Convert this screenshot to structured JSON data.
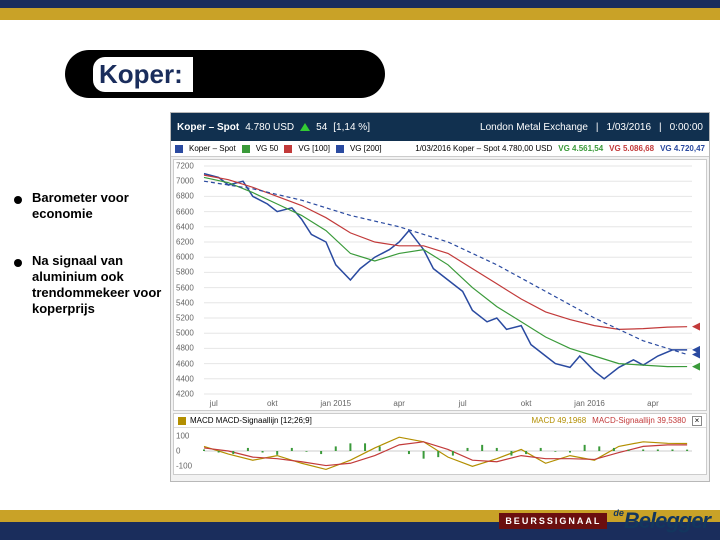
{
  "frame": {
    "gold_color": "#c9a227",
    "navy_color": "#1a2d5c"
  },
  "title": "Koper:",
  "bullets": [
    "Barometer voor economie",
    "Na signaal van aluminium ook trendommekeer voor koperprijs"
  ],
  "header": {
    "title": "Koper – Spot",
    "price": "4.780 USD",
    "change_abs": "54",
    "change_pct": "[1,14 %]",
    "exchange": "London Metal Exchange",
    "date": "1/03/2016",
    "time": "0:00:00"
  },
  "legend": {
    "items": [
      {
        "color": "#2a4aa0",
        "label": "Koper – Spot"
      },
      {
        "color": "#3a9a3a",
        "label": "VG   50"
      },
      {
        "color": "#c23a3a",
        "label": "VG [100]"
      },
      {
        "color": "#2a4aa0",
        "label": "VG [200]"
      }
    ],
    "date": "1/03/2016",
    "spot_label": "Koper – Spot 4.780,00 USD",
    "vg_labels": [
      {
        "color": "#3a9a3a",
        "text": "VG 4.561,54"
      },
      {
        "color": "#c23a3a",
        "text": "VG 5.086,68"
      },
      {
        "color": "#2a4aa0",
        "text": "VG 4.720,47"
      }
    ]
  },
  "price_chart": {
    "type": "line",
    "background_color": "#ffffff",
    "grid_color": "#e6e6e6",
    "ylim": [
      4200,
      7200
    ],
    "ytick_step": 200,
    "x_categories": [
      "jul",
      "okt",
      "jan 2015",
      "apr",
      "jul",
      "okt",
      "jan 2016",
      "apr"
    ],
    "x_positions": [
      0.02,
      0.14,
      0.27,
      0.4,
      0.53,
      0.66,
      0.79,
      0.92
    ],
    "series": [
      {
        "name": "spot",
        "color": "#2a4aa0",
        "width": 1.5,
        "points": [
          [
            0.0,
            7100
          ],
          [
            0.03,
            7050
          ],
          [
            0.05,
            6950
          ],
          [
            0.08,
            7000
          ],
          [
            0.1,
            6800
          ],
          [
            0.13,
            6700
          ],
          [
            0.15,
            6600
          ],
          [
            0.18,
            6650
          ],
          [
            0.2,
            6500
          ],
          [
            0.22,
            6300
          ],
          [
            0.25,
            6200
          ],
          [
            0.27,
            5900
          ],
          [
            0.3,
            5700
          ],
          [
            0.32,
            5850
          ],
          [
            0.35,
            6000
          ],
          [
            0.38,
            6100
          ],
          [
            0.4,
            6200
          ],
          [
            0.42,
            6350
          ],
          [
            0.45,
            6100
          ],
          [
            0.47,
            5850
          ],
          [
            0.5,
            5700
          ],
          [
            0.53,
            5550
          ],
          [
            0.55,
            5300
          ],
          [
            0.58,
            5150
          ],
          [
            0.6,
            5200
          ],
          [
            0.62,
            5050
          ],
          [
            0.65,
            5100
          ],
          [
            0.67,
            4850
          ],
          [
            0.7,
            4700
          ],
          [
            0.72,
            4600
          ],
          [
            0.75,
            4550
          ],
          [
            0.77,
            4700
          ],
          [
            0.8,
            4500
          ],
          [
            0.82,
            4400
          ],
          [
            0.85,
            4550
          ],
          [
            0.88,
            4650
          ],
          [
            0.9,
            4580
          ],
          [
            0.93,
            4700
          ],
          [
            0.96,
            4780
          ],
          [
            0.99,
            4780
          ]
        ]
      },
      {
        "name": "vg50",
        "color": "#3a9a3a",
        "width": 1.2,
        "points": [
          [
            0.0,
            7050
          ],
          [
            0.05,
            6980
          ],
          [
            0.1,
            6850
          ],
          [
            0.15,
            6700
          ],
          [
            0.2,
            6550
          ],
          [
            0.25,
            6350
          ],
          [
            0.3,
            6050
          ],
          [
            0.35,
            5950
          ],
          [
            0.4,
            6050
          ],
          [
            0.45,
            6100
          ],
          [
            0.5,
            5900
          ],
          [
            0.55,
            5600
          ],
          [
            0.6,
            5350
          ],
          [
            0.65,
            5150
          ],
          [
            0.7,
            4950
          ],
          [
            0.75,
            4800
          ],
          [
            0.8,
            4700
          ],
          [
            0.85,
            4600
          ],
          [
            0.9,
            4580
          ],
          [
            0.95,
            4560
          ],
          [
            0.99,
            4561
          ]
        ]
      },
      {
        "name": "vg100",
        "color": "#c23a3a",
        "width": 1.2,
        "points": [
          [
            0.0,
            7080
          ],
          [
            0.05,
            7020
          ],
          [
            0.1,
            6920
          ],
          [
            0.15,
            6800
          ],
          [
            0.2,
            6680
          ],
          [
            0.25,
            6520
          ],
          [
            0.3,
            6320
          ],
          [
            0.35,
            6200
          ],
          [
            0.4,
            6150
          ],
          [
            0.45,
            6150
          ],
          [
            0.5,
            6050
          ],
          [
            0.55,
            5850
          ],
          [
            0.6,
            5650
          ],
          [
            0.65,
            5450
          ],
          [
            0.7,
            5280
          ],
          [
            0.75,
            5180
          ],
          [
            0.8,
            5100
          ],
          [
            0.85,
            5050
          ],
          [
            0.9,
            5060
          ],
          [
            0.95,
            5080
          ],
          [
            0.99,
            5086
          ]
        ]
      },
      {
        "name": "vg200",
        "color": "#2a4aa0",
        "width": 1.2,
        "dash": "4 3",
        "points": [
          [
            0.0,
            7000
          ],
          [
            0.1,
            6900
          ],
          [
            0.2,
            6750
          ],
          [
            0.3,
            6550
          ],
          [
            0.4,
            6400
          ],
          [
            0.5,
            6200
          ],
          [
            0.6,
            5900
          ],
          [
            0.7,
            5550
          ],
          [
            0.8,
            5200
          ],
          [
            0.9,
            4900
          ],
          [
            0.99,
            4720
          ]
        ]
      }
    ],
    "markers_right": [
      {
        "y": 4780,
        "color": "#2a4aa0"
      },
      {
        "y": 5086,
        "color": "#c23a3a"
      },
      {
        "y": 4720,
        "color": "#2a4aa0"
      },
      {
        "y": 4561,
        "color": "#3a9a3a"
      }
    ]
  },
  "macd": {
    "label": "MACD MACD-Signaallijn [12;26;9]",
    "val1": {
      "color": "#b38f00",
      "text": "MACD 49,1968"
    },
    "val2": {
      "color": "#c23a3a",
      "text": "MACD-Signaallijn 39,5380"
    },
    "ylim": [
      -150,
      150
    ],
    "series": [
      {
        "name": "macd",
        "color": "#b38f00",
        "width": 1.2,
        "points": [
          [
            0.0,
            30
          ],
          [
            0.05,
            -20
          ],
          [
            0.1,
            -60
          ],
          [
            0.15,
            -30
          ],
          [
            0.2,
            -80
          ],
          [
            0.25,
            -120
          ],
          [
            0.3,
            -60
          ],
          [
            0.35,
            20
          ],
          [
            0.4,
            90
          ],
          [
            0.45,
            60
          ],
          [
            0.5,
            -40
          ],
          [
            0.55,
            -100
          ],
          [
            0.6,
            -50
          ],
          [
            0.65,
            10
          ],
          [
            0.7,
            -80
          ],
          [
            0.75,
            -30
          ],
          [
            0.8,
            -60
          ],
          [
            0.85,
            30
          ],
          [
            0.9,
            60
          ],
          [
            0.95,
            50
          ],
          [
            0.99,
            49
          ]
        ]
      },
      {
        "name": "signal",
        "color": "#c23a3a",
        "width": 1.2,
        "points": [
          [
            0.0,
            20
          ],
          [
            0.05,
            0
          ],
          [
            0.1,
            -40
          ],
          [
            0.15,
            -50
          ],
          [
            0.2,
            -70
          ],
          [
            0.25,
            -95
          ],
          [
            0.3,
            -80
          ],
          [
            0.35,
            -30
          ],
          [
            0.4,
            40
          ],
          [
            0.45,
            60
          ],
          [
            0.5,
            10
          ],
          [
            0.55,
            -60
          ],
          [
            0.6,
            -70
          ],
          [
            0.65,
            -30
          ],
          [
            0.7,
            -50
          ],
          [
            0.75,
            -50
          ],
          [
            0.8,
            -55
          ],
          [
            0.85,
            -10
          ],
          [
            0.9,
            30
          ],
          [
            0.95,
            40
          ],
          [
            0.99,
            40
          ]
        ]
      },
      {
        "name": "hist",
        "color": "#3a9a3a",
        "type": "bar",
        "points": [
          [
            0.0,
            10
          ],
          [
            0.03,
            -10
          ],
          [
            0.06,
            -20
          ],
          [
            0.09,
            20
          ],
          [
            0.12,
            -10
          ],
          [
            0.15,
            -25
          ],
          [
            0.18,
            20
          ],
          [
            0.21,
            -5
          ],
          [
            0.24,
            -20
          ],
          [
            0.27,
            30
          ],
          [
            0.3,
            50
          ],
          [
            0.33,
            50
          ],
          [
            0.36,
            30
          ],
          [
            0.39,
            0
          ],
          [
            0.42,
            -20
          ],
          [
            0.45,
            -50
          ],
          [
            0.48,
            -40
          ],
          [
            0.51,
            -30
          ],
          [
            0.54,
            20
          ],
          [
            0.57,
            40
          ],
          [
            0.6,
            20
          ],
          [
            0.63,
            -30
          ],
          [
            0.66,
            -20
          ],
          [
            0.69,
            20
          ],
          [
            0.72,
            -5
          ],
          [
            0.75,
            -10
          ],
          [
            0.78,
            40
          ],
          [
            0.81,
            30
          ],
          [
            0.84,
            20
          ],
          [
            0.87,
            10
          ],
          [
            0.9,
            10
          ],
          [
            0.93,
            10
          ],
          [
            0.96,
            10
          ],
          [
            0.99,
            9
          ]
        ]
      }
    ],
    "yticks": [
      -100,
      0,
      100
    ]
  },
  "logos": {
    "beurssignaal": "BEURSSIGNAAL",
    "belegger_de": "de",
    "belegger_main": "Belegger"
  }
}
